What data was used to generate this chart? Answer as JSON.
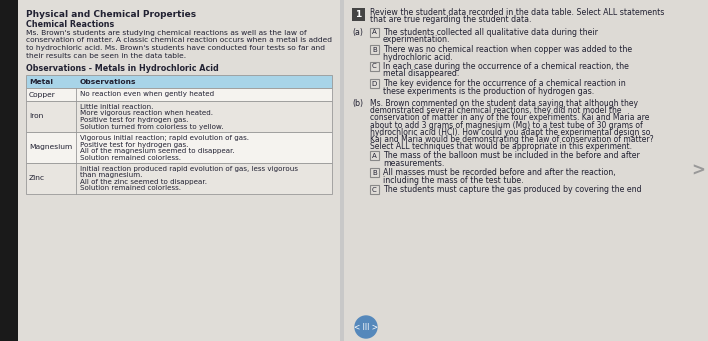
{
  "bg_color": "#c8c8c8",
  "left_dark_strip": "#1a1a1a",
  "left_panel_bg": "#e0ddd8",
  "right_panel_bg": "#dddad5",
  "title": "Physical and Chemical Properties",
  "subtitle": "Chemical Reactions",
  "intro_lines": [
    "Ms. Brown's students are studying chemical reactions as well as the law of",
    "conservation of matter. A classic chemical reaction occurs when a metal is added",
    "to hydrochloric acid. Ms. Brown's students have conducted four tests so far and",
    "their results can be seen in the data table."
  ],
  "table_title": "Observations - Metals in Hydrochloric Acid",
  "table_header": [
    "Metal",
    "Observations"
  ],
  "table_header_color": "#a8d4e8",
  "table_rows": [
    [
      "Copper",
      [
        "No reaction even when gently heated"
      ]
    ],
    [
      "Iron",
      [
        "Little initial reaction.",
        "More vigorous reaction when heated.",
        "Positive test for hydrogen gas.",
        "Solution turned from colorless to yellow."
      ]
    ],
    [
      "Magnesium",
      [
        "Vigorous initial reaction; rapid evolution of gas.",
        "Positive test for hydrogen gas.",
        "All of the magnesium seemed to disappear.",
        "Solution remained colorless."
      ]
    ],
    [
      "Zinc",
      [
        "Initial reaction produced rapid evolution of gas, less vigorous",
        "than magnesium.",
        "All of the zinc seemed to disappear.",
        "Solution remained colorless."
      ]
    ]
  ],
  "table_row_alt": [
    "#f5f3ef",
    "#e8e5e0",
    "#f5f3ef",
    "#e8e5e0"
  ],
  "question_number_bg": "#444444",
  "question_number_color": "#ffffff",
  "question_number": "1",
  "part_a_label": "(a)",
  "part_a_options": [
    [
      "A",
      [
        "The students collected all qualitative data during their",
        "experimentation."
      ]
    ],
    [
      "B",
      [
        "There was no chemical reaction when copper was added to the",
        "hydrochloric acid."
      ]
    ],
    [
      "C",
      [
        "In each case during the occurrence of a chemical reaction, the",
        "metal disappeared."
      ]
    ],
    [
      "D",
      [
        "The key evidence for the occurrence of a chemical reaction in",
        "these experiments is the production of hydrogen gas."
      ]
    ]
  ],
  "part_b_label": "(b)",
  "part_b_lines": [
    "Ms. Brown commented on the student data saying that although they",
    "demonstrated several chemical reactions, they did not model the",
    "conservation of matter in any of the four experiments. Kai and Maria are",
    "about to add 3 grams of magnesium (Mg) to a test tube of 30 grams of",
    "hydrochloric acid (HCl). How could you adapt the experimental design so",
    "Kai and Maria would be demonstrating the law of conservation of matter?",
    "Select ALL techniques that would be appropriate in this experiment."
  ],
  "part_b_options": [
    [
      "A",
      [
        "The mass of the balloon must be included in the before and after",
        "measurements."
      ]
    ],
    [
      "B",
      [
        "All masses must be recorded before and after the reaction,",
        "including the mass of the test tube."
      ]
    ],
    [
      "C",
      [
        "The students must capture the gas produced by covering the end"
      ]
    ]
  ],
  "nav_bg": "#5588bb",
  "nav_text": "< III >",
  "right_arrow": ">",
  "text_color": "#222233",
  "option_box_color": "#e0ddd8",
  "option_box_edge": "#888888"
}
